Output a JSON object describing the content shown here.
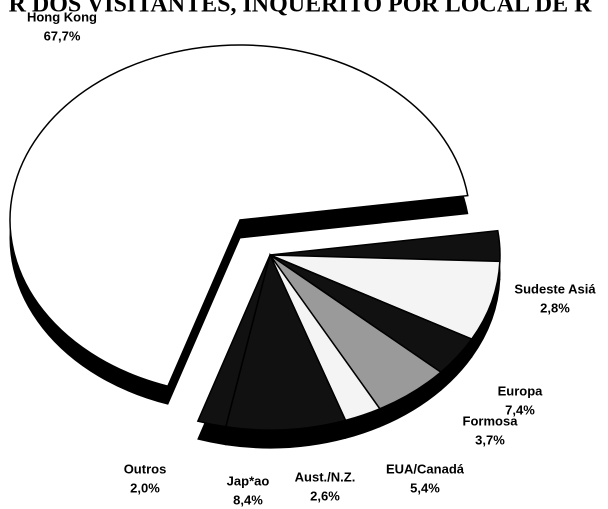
{
  "chart_data": {
    "type": "pie",
    "title": "R DOS VISITANTES, INQUÉRITO POR LOCAL DE R",
    "categories": [
      "Sudeste Asiá",
      "Europa",
      "Formosa",
      "EUA/Canadá",
      "Aust./N.Z.",
      "Jap*ao",
      "Outros",
      "Hong Kong"
    ],
    "values": [
      2.8,
      7.4,
      3.7,
      5.4,
      2.6,
      8.4,
      2.0,
      67.7
    ],
    "value_labels": [
      "2,8%",
      "7,4%",
      "3,7%",
      "5,4%",
      "2,6%",
      "8,4%",
      "2,0%",
      "67,7%"
    ],
    "colors": [
      "#111111",
      "#f4f4f4",
      "#111111",
      "#9a9a9a",
      "#f4f4f4",
      "#111111",
      "#111111",
      "#ffffff"
    ]
  }
}
